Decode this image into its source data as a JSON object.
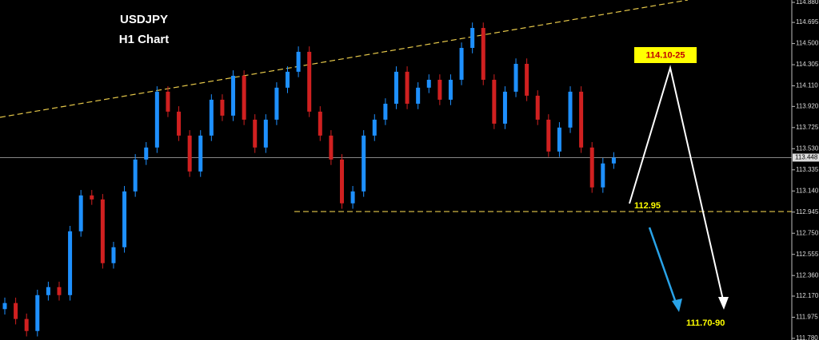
{
  "chart_data": {
    "type": "candlestick",
    "title": "USDJPY",
    "subtitle": "H1 Chart",
    "annotations": {
      "target_high": "114.10-25",
      "support_label": "112.95",
      "target_low": "111.70-90"
    },
    "support": 112.95,
    "current_price": 113.448,
    "up_color": "#1e90ff",
    "down_color": "#d02020",
    "ylim": [
      111.765,
      114.902
    ],
    "yticks": [
      {
        "value": 114.88,
        "label": "114.880"
      },
      114.695,
      {
        "value": 114.5,
        "label": "114.500"
      },
      114.305,
      {
        "value": 114.11,
        "label": "114.110"
      },
      {
        "value": 113.92,
        "label": "113.920"
      },
      113.725,
      {
        "value": 113.53,
        "label": "113.530"
      },
      113.335,
      {
        "value": 113.14,
        "label": "113.140"
      },
      112.945,
      {
        "value": 112.75,
        "label": "112.750"
      },
      112.555,
      {
        "value": 112.36,
        "label": "112.360"
      },
      {
        "value": 112.17,
        "label": "112.170"
      },
      111.975,
      {
        "value": 111.78,
        "label": "111.780"
      }
    ],
    "open": [
      112.05,
      112.106,
      111.959,
      111.848,
      112.179,
      112.253,
      112.179,
      112.768,
      113.099,
      113.062,
      112.474,
      112.621,
      113.136,
      113.43,
      113.541,
      114.056,
      113.872,
      113.651,
      113.32,
      113.651,
      113.982,
      113.835,
      114.203,
      113.798,
      113.541,
      113.798,
      114.093,
      114.24,
      114.424,
      113.872,
      113.651,
      113.43,
      113.026,
      113.136,
      113.651,
      113.798,
      113.945,
      114.24,
      113.945,
      114.093,
      114.166,
      113.982,
      114.166,
      114.46,
      114.644,
      114.166,
      113.761,
      114.056,
      114.313,
      114.019,
      113.798,
      113.504,
      113.725,
      114.056,
      113.541,
      113.173,
      113.394
    ],
    "high": [
      112.156,
      112.156,
      112.009,
      112.229,
      112.303,
      112.303,
      112.818,
      113.149,
      113.149,
      113.112,
      112.671,
      113.186,
      113.48,
      113.591,
      114.106,
      114.106,
      113.922,
      113.701,
      113.701,
      114.032,
      114.032,
      114.253,
      114.253,
      113.848,
      113.848,
      114.143,
      114.29,
      114.474,
      114.474,
      113.922,
      113.701,
      113.48,
      113.186,
      113.701,
      113.848,
      113.995,
      114.29,
      114.29,
      114.143,
      114.216,
      114.216,
      114.216,
      114.51,
      114.694,
      114.694,
      114.216,
      114.106,
      114.363,
      114.363,
      114.069,
      113.848,
      113.775,
      114.106,
      114.106,
      113.591,
      113.444,
      113.498
    ],
    "low": [
      112.0,
      111.909,
      111.798,
      111.798,
      112.129,
      112.129,
      112.129,
      112.718,
      113.012,
      112.424,
      112.424,
      112.571,
      113.086,
      113.38,
      113.491,
      113.822,
      113.601,
      113.27,
      113.27,
      113.601,
      113.785,
      113.785,
      113.748,
      113.491,
      113.491,
      113.748,
      114.043,
      114.19,
      113.822,
      113.601,
      113.38,
      112.976,
      112.976,
      113.086,
      113.601,
      113.748,
      113.895,
      113.895,
      113.895,
      114.043,
      113.932,
      113.932,
      114.116,
      114.41,
      114.116,
      113.711,
      113.711,
      114.006,
      113.969,
      113.748,
      113.454,
      113.454,
      113.675,
      113.491,
      113.123,
      113.123,
      113.344
    ],
    "close": [
      112.106,
      111.959,
      111.848,
      112.179,
      112.253,
      112.179,
      112.768,
      113.099,
      113.062,
      112.474,
      112.621,
      113.136,
      113.43,
      113.541,
      114.056,
      113.872,
      113.651,
      113.32,
      113.651,
      113.982,
      113.835,
      114.203,
      113.798,
      113.541,
      113.798,
      114.093,
      114.24,
      114.424,
      113.872,
      113.651,
      113.43,
      113.026,
      113.136,
      113.651,
      113.798,
      113.945,
      114.24,
      113.945,
      114.093,
      114.166,
      113.982,
      114.166,
      114.46,
      114.644,
      114.166,
      113.761,
      114.056,
      114.313,
      114.019,
      113.798,
      113.504,
      113.725,
      114.056,
      113.541,
      113.173,
      113.394,
      113.448
    ]
  }
}
